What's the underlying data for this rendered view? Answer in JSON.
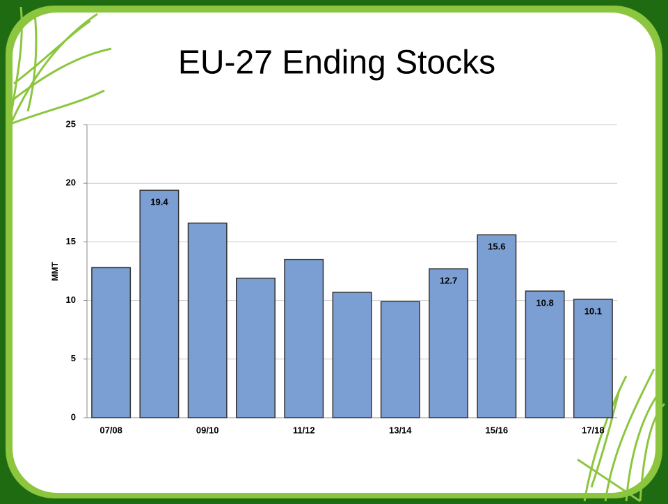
{
  "chart_data": {
    "type": "bar",
    "title": "EU-27 Ending Stocks",
    "y_label": "MMT",
    "categories": [
      "07/08",
      null,
      "09/10",
      null,
      "11/12",
      null,
      "13/14",
      null,
      "15/16",
      null,
      "17/18"
    ],
    "values": [
      12.8,
      19.4,
      16.6,
      11.9,
      13.5,
      10.7,
      9.9,
      12.7,
      15.6,
      10.8,
      10.1
    ],
    "value_labels": [
      null,
      "19.4",
      null,
      null,
      null,
      null,
      null,
      "12.7",
      "15.6",
      "10.8",
      "10.1"
    ],
    "color": "#7b9fd3",
    "ylim": [
      0,
      25
    ],
    "yticks": [
      0,
      5,
      10,
      15,
      20,
      25
    ],
    "grid": true
  }
}
